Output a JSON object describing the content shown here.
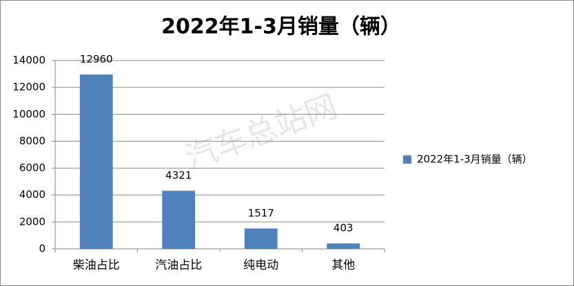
{
  "chart_data": {
    "type": "bar",
    "title": "2022年1-3月销量（辆）",
    "categories": [
      "柴油占比",
      "汽油占比",
      "纯电动",
      "其他"
    ],
    "series": [
      {
        "name": "2022年1-3月销量（辆）",
        "color": "#4f81bd",
        "values": [
          12960,
          4321,
          1517,
          403
        ]
      }
    ],
    "ylim": [
      0,
      14000
    ],
    "yticks": [
      0,
      2000,
      4000,
      6000,
      8000,
      10000,
      12000,
      14000
    ],
    "grid": true,
    "legend": "right",
    "watermark": "汽车总站网"
  }
}
